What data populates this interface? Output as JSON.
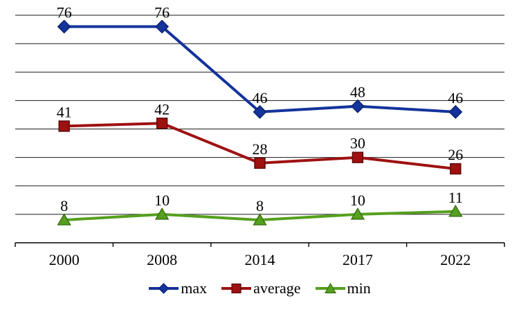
{
  "chart_data": {
    "type": "line",
    "title": "",
    "xlabel": "",
    "ylabel": "",
    "categories": [
      "2000",
      "2008",
      "2014",
      "2017",
      "2022"
    ],
    "series": [
      {
        "name": "max",
        "marker": "diamond-icon",
        "color": "#14339B",
        "border": "#0A2270",
        "values": [
          76,
          76,
          46,
          48,
          46
        ]
      },
      {
        "name": "average",
        "marker": "square-icon",
        "color": "#9E1111",
        "border": "#5A0808",
        "values": [
          41,
          42,
          28,
          30,
          26
        ]
      },
      {
        "name": "min",
        "marker": "triangle-icon",
        "color": "#55A01E",
        "border": "#3B7012",
        "values": [
          8,
          10,
          8,
          10,
          11
        ]
      }
    ],
    "ylim": [
      0,
      80
    ],
    "grid_step": 10,
    "grid": "horizontal",
    "grid_color": "#1A1A1A",
    "axis_color": "#000000",
    "background": "#FFFFFF",
    "legend_position": "bottom",
    "data_labels": true
  }
}
